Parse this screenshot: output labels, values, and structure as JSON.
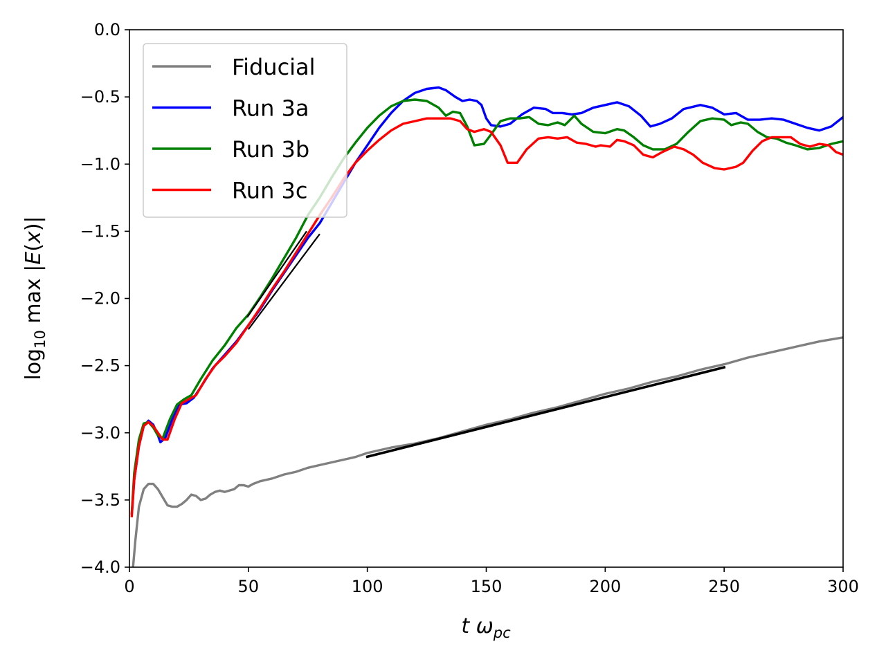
{
  "chart_data": {
    "type": "line",
    "xlabel": "t ω_pc",
    "ylabel": "log10 max |E(x)|",
    "xlim": [
      0,
      300
    ],
    "ylim": [
      -4.0,
      0.0
    ],
    "x_ticks": [
      0,
      50,
      100,
      150,
      200,
      250,
      300
    ],
    "y_ticks": [
      0.0,
      -0.5,
      -1.0,
      -1.5,
      -2.0,
      -2.5,
      -3.0,
      -3.5,
      -4.0
    ],
    "x_tick_labels": [
      "0",
      "50",
      "100",
      "150",
      "200",
      "250",
      "300"
    ],
    "y_tick_labels": [
      "0.0",
      "−0.5",
      "−1.0",
      "−1.5",
      "−2.0",
      "−2.5",
      "−3.0",
      "−3.5",
      "−4.0"
    ],
    "grid": false,
    "legend_position": "top-left",
    "series": [
      {
        "name": "Fiducial",
        "color": "#808080",
        "points": [
          [
            1.5,
            -4.0
          ],
          [
            2.5,
            -3.8
          ],
          [
            4,
            -3.55
          ],
          [
            6,
            -3.42
          ],
          [
            8,
            -3.38
          ],
          [
            10,
            -3.38
          ],
          [
            12,
            -3.42
          ],
          [
            14,
            -3.48
          ],
          [
            16,
            -3.54
          ],
          [
            18,
            -3.55
          ],
          [
            20,
            -3.55
          ],
          [
            22,
            -3.53
          ],
          [
            24,
            -3.5
          ],
          [
            26,
            -3.46
          ],
          [
            28,
            -3.47
          ],
          [
            30,
            -3.5
          ],
          [
            32,
            -3.49
          ],
          [
            34,
            -3.46
          ],
          [
            36,
            -3.44
          ],
          [
            38,
            -3.43
          ],
          [
            40,
            -3.44
          ],
          [
            42,
            -3.43
          ],
          [
            44,
            -3.42
          ],
          [
            46,
            -3.39
          ],
          [
            48,
            -3.39
          ],
          [
            50,
            -3.4
          ],
          [
            52,
            -3.38
          ],
          [
            55,
            -3.36
          ],
          [
            60,
            -3.34
          ],
          [
            65,
            -3.31
          ],
          [
            70,
            -3.29
          ],
          [
            75,
            -3.26
          ],
          [
            80,
            -3.24
          ],
          [
            85,
            -3.22
          ],
          [
            90,
            -3.2
          ],
          [
            95,
            -3.18
          ],
          [
            100,
            -3.15
          ],
          [
            110,
            -3.11
          ],
          [
            120,
            -3.08
          ],
          [
            130,
            -3.04
          ],
          [
            140,
            -2.99
          ],
          [
            150,
            -2.94
          ],
          [
            160,
            -2.9
          ],
          [
            170,
            -2.85
          ],
          [
            180,
            -2.81
          ],
          [
            190,
            -2.76
          ],
          [
            200,
            -2.71
          ],
          [
            210,
            -2.67
          ],
          [
            220,
            -2.62
          ],
          [
            230,
            -2.58
          ],
          [
            240,
            -2.53
          ],
          [
            250,
            -2.49
          ],
          [
            260,
            -2.44
          ],
          [
            270,
            -2.4
          ],
          [
            280,
            -2.36
          ],
          [
            290,
            -2.32
          ],
          [
            300,
            -2.29
          ]
        ]
      },
      {
        "name": "Run 3a",
        "color": "#0000ff",
        "points": [
          [
            1,
            -3.6
          ],
          [
            2,
            -3.35
          ],
          [
            4,
            -3.1
          ],
          [
            6,
            -2.95
          ],
          [
            8,
            -2.91
          ],
          [
            10,
            -2.94
          ],
          [
            12,
            -3.02
          ],
          [
            13,
            -3.07
          ],
          [
            15,
            -3.04
          ],
          [
            18,
            -2.9
          ],
          [
            21,
            -2.79
          ],
          [
            24,
            -2.78
          ],
          [
            27,
            -2.74
          ],
          [
            30,
            -2.66
          ],
          [
            35,
            -2.52
          ],
          [
            40,
            -2.42
          ],
          [
            45,
            -2.32
          ],
          [
            50,
            -2.2
          ],
          [
            55,
            -2.08
          ],
          [
            60,
            -1.94
          ],
          [
            65,
            -1.81
          ],
          [
            70,
            -1.68
          ],
          [
            75,
            -1.55
          ],
          [
            80,
            -1.44
          ],
          [
            85,
            -1.29
          ],
          [
            90,
            -1.14
          ],
          [
            95,
            -0.99
          ],
          [
            100,
            -0.86
          ],
          [
            105,
            -0.73
          ],
          [
            110,
            -0.62
          ],
          [
            115,
            -0.53
          ],
          [
            120,
            -0.47
          ],
          [
            125,
            -0.44
          ],
          [
            130,
            -0.43
          ],
          [
            133,
            -0.45
          ],
          [
            137,
            -0.5
          ],
          [
            140,
            -0.53
          ],
          [
            143,
            -0.52
          ],
          [
            146,
            -0.53
          ],
          [
            148,
            -0.56
          ],
          [
            150,
            -0.66
          ],
          [
            152,
            -0.71
          ],
          [
            156,
            -0.72
          ],
          [
            160,
            -0.7
          ],
          [
            165,
            -0.63
          ],
          [
            170,
            -0.58
          ],
          [
            175,
            -0.59
          ],
          [
            178,
            -0.62
          ],
          [
            182,
            -0.62
          ],
          [
            186,
            -0.63
          ],
          [
            190,
            -0.62
          ],
          [
            195,
            -0.58
          ],
          [
            200,
            -0.56
          ],
          [
            205,
            -0.54
          ],
          [
            210,
            -0.57
          ],
          [
            215,
            -0.64
          ],
          [
            219,
            -0.72
          ],
          [
            223,
            -0.7
          ],
          [
            228,
            -0.66
          ],
          [
            233,
            -0.59
          ],
          [
            240,
            -0.56
          ],
          [
            245,
            -0.58
          ],
          [
            250,
            -0.63
          ],
          [
            255,
            -0.62
          ],
          [
            260,
            -0.67
          ],
          [
            265,
            -0.67
          ],
          [
            270,
            -0.66
          ],
          [
            275,
            -0.67
          ],
          [
            280,
            -0.7
          ],
          [
            285,
            -0.73
          ],
          [
            290,
            -0.75
          ],
          [
            295,
            -0.72
          ],
          [
            300,
            -0.65
          ]
        ]
      },
      {
        "name": "Run 3b",
        "color": "#008000",
        "points": [
          [
            1,
            -3.6
          ],
          [
            2,
            -3.3
          ],
          [
            4,
            -3.05
          ],
          [
            6,
            -2.93
          ],
          [
            8,
            -2.92
          ],
          [
            10,
            -2.96
          ],
          [
            12,
            -3.02
          ],
          [
            14,
            -3.04
          ],
          [
            17,
            -2.9
          ],
          [
            20,
            -2.79
          ],
          [
            23,
            -2.75
          ],
          [
            26,
            -2.72
          ],
          [
            30,
            -2.6
          ],
          [
            35,
            -2.46
          ],
          [
            40,
            -2.35
          ],
          [
            45,
            -2.22
          ],
          [
            50,
            -2.12
          ],
          [
            55,
            -1.99
          ],
          [
            60,
            -1.85
          ],
          [
            65,
            -1.7
          ],
          [
            70,
            -1.55
          ],
          [
            75,
            -1.38
          ],
          [
            80,
            -1.25
          ],
          [
            85,
            -1.1
          ],
          [
            90,
            -0.96
          ],
          [
            95,
            -0.84
          ],
          [
            100,
            -0.73
          ],
          [
            105,
            -0.64
          ],
          [
            110,
            -0.57
          ],
          [
            115,
            -0.53
          ],
          [
            120,
            -0.52
          ],
          [
            125,
            -0.53
          ],
          [
            130,
            -0.58
          ],
          [
            133,
            -0.64
          ],
          [
            136,
            -0.61
          ],
          [
            139,
            -0.62
          ],
          [
            142,
            -0.72
          ],
          [
            145,
            -0.86
          ],
          [
            149,
            -0.85
          ],
          [
            152,
            -0.78
          ],
          [
            156,
            -0.68
          ],
          [
            160,
            -0.66
          ],
          [
            164,
            -0.66
          ],
          [
            168,
            -0.65
          ],
          [
            172,
            -0.7
          ],
          [
            176,
            -0.71
          ],
          [
            180,
            -0.69
          ],
          [
            183,
            -0.71
          ],
          [
            187,
            -0.64
          ],
          [
            190,
            -0.7
          ],
          [
            195,
            -0.76
          ],
          [
            200,
            -0.77
          ],
          [
            205,
            -0.74
          ],
          [
            208,
            -0.75
          ],
          [
            212,
            -0.8
          ],
          [
            216,
            -0.86
          ],
          [
            220,
            -0.89
          ],
          [
            225,
            -0.89
          ],
          [
            230,
            -0.85
          ],
          [
            235,
            -0.76
          ],
          [
            240,
            -0.68
          ],
          [
            245,
            -0.66
          ],
          [
            250,
            -0.67
          ],
          [
            253,
            -0.71
          ],
          [
            257,
            -0.69
          ],
          [
            260,
            -0.7
          ],
          [
            264,
            -0.76
          ],
          [
            268,
            -0.8
          ],
          [
            272,
            -0.81
          ],
          [
            276,
            -0.84
          ],
          [
            280,
            -0.86
          ],
          [
            285,
            -0.89
          ],
          [
            290,
            -0.88
          ],
          [
            295,
            -0.85
          ],
          [
            300,
            -0.83
          ]
        ]
      },
      {
        "name": "Run 3c",
        "color": "#ff0000",
        "points": [
          [
            1,
            -3.62
          ],
          [
            2,
            -3.35
          ],
          [
            4,
            -3.1
          ],
          [
            6,
            -2.95
          ],
          [
            8,
            -2.92
          ],
          [
            10,
            -2.95
          ],
          [
            12,
            -3.0
          ],
          [
            14,
            -3.05
          ],
          [
            16,
            -3.05
          ],
          [
            19,
            -2.9
          ],
          [
            22,
            -2.78
          ],
          [
            25,
            -2.75
          ],
          [
            28,
            -2.72
          ],
          [
            32,
            -2.6
          ],
          [
            36,
            -2.5
          ],
          [
            40,
            -2.43
          ],
          [
            45,
            -2.33
          ],
          [
            50,
            -2.2
          ],
          [
            55,
            -2.07
          ],
          [
            60,
            -1.93
          ],
          [
            65,
            -1.8
          ],
          [
            70,
            -1.66
          ],
          [
            75,
            -1.52
          ],
          [
            80,
            -1.38
          ],
          [
            85,
            -1.25
          ],
          [
            90,
            -1.11
          ],
          [
            95,
            -0.99
          ],
          [
            100,
            -0.9
          ],
          [
            105,
            -0.82
          ],
          [
            110,
            -0.75
          ],
          [
            115,
            -0.7
          ],
          [
            120,
            -0.68
          ],
          [
            125,
            -0.66
          ],
          [
            130,
            -0.66
          ],
          [
            135,
            -0.66
          ],
          [
            139,
            -0.68
          ],
          [
            142,
            -0.74
          ],
          [
            145,
            -0.76
          ],
          [
            149,
            -0.74
          ],
          [
            152,
            -0.76
          ],
          [
            156,
            -0.86
          ],
          [
            159,
            -0.99
          ],
          [
            163,
            -0.99
          ],
          [
            167,
            -0.89
          ],
          [
            172,
            -0.81
          ],
          [
            176,
            -0.8
          ],
          [
            180,
            -0.81
          ],
          [
            184,
            -0.8
          ],
          [
            188,
            -0.84
          ],
          [
            192,
            -0.85
          ],
          [
            196,
            -0.87
          ],
          [
            198,
            -0.86
          ],
          [
            202,
            -0.87
          ],
          [
            205,
            -0.82
          ],
          [
            208,
            -0.83
          ],
          [
            212,
            -0.86
          ],
          [
            216,
            -0.93
          ],
          [
            220,
            -0.95
          ],
          [
            224,
            -0.91
          ],
          [
            229,
            -0.87
          ],
          [
            233,
            -0.89
          ],
          [
            237,
            -0.93
          ],
          [
            241,
            -0.99
          ],
          [
            246,
            -1.03
          ],
          [
            250,
            -1.04
          ],
          [
            255,
            -1.02
          ],
          [
            258,
            -0.99
          ],
          [
            262,
            -0.9
          ],
          [
            266,
            -0.83
          ],
          [
            270,
            -0.8
          ],
          [
            275,
            -0.8
          ],
          [
            278,
            -0.8
          ],
          [
            282,
            -0.85
          ],
          [
            286,
            -0.87
          ],
          [
            290,
            -0.85
          ],
          [
            294,
            -0.86
          ],
          [
            297,
            -0.91
          ],
          [
            300,
            -0.93
          ]
        ]
      }
    ],
    "fit_lines": [
      {
        "color": "#000000",
        "points": [
          [
            49.5,
            -2.14
          ],
          [
            74.5,
            -1.5
          ]
        ]
      },
      {
        "color": "#000000",
        "points": [
          [
            50,
            -2.23
          ],
          [
            80,
            -1.52
          ]
        ]
      },
      {
        "color": "#000000",
        "points": [
          [
            99.5,
            -3.18
          ],
          [
            250.5,
            -2.51
          ]
        ]
      }
    ]
  }
}
